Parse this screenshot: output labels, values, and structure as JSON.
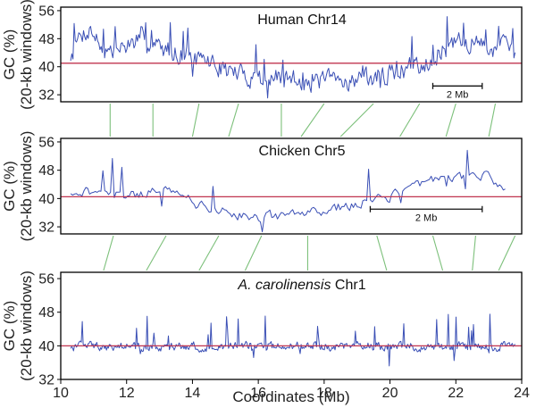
{
  "chart_data": {
    "type": "line",
    "x_axis": {
      "label": "Coordinates (Mb)",
      "lim": [
        10,
        24
      ],
      "ticks": [
        10,
        12,
        14,
        16,
        18,
        20,
        22,
        24
      ]
    },
    "panels": [
      {
        "id": "human",
        "title": "Human Chr14",
        "title_italic": "",
        "ylabel_line1": "GC (%)",
        "ylabel_line2": "(20-kb windows)",
        "ylim": [
          30,
          57
        ],
        "yticks": [
          32,
          40,
          48,
          56
        ],
        "reference_line": 41,
        "scalebar": {
          "label": "2 Mb",
          "x_start": 21.3,
          "x_end": 22.8,
          "y": 34.5
        },
        "profile": [
          [
            10.3,
            43
          ],
          [
            10.6,
            49
          ],
          [
            10.9,
            51
          ],
          [
            11.2,
            46
          ],
          [
            11.6,
            44
          ],
          [
            12.0,
            46
          ],
          [
            12.4,
            48
          ],
          [
            12.8,
            46
          ],
          [
            13.2,
            45
          ],
          [
            13.6,
            44
          ],
          [
            14.0,
            43
          ],
          [
            14.4,
            42
          ],
          [
            14.8,
            40
          ],
          [
            15.2,
            38.5
          ],
          [
            15.6,
            37.5
          ],
          [
            16.0,
            37
          ],
          [
            16.5,
            36.5
          ],
          [
            17.0,
            36.5
          ],
          [
            17.5,
            36
          ],
          [
            18.0,
            36
          ],
          [
            18.5,
            36
          ],
          [
            19.0,
            36.5
          ],
          [
            19.5,
            37
          ],
          [
            20.0,
            38
          ],
          [
            20.5,
            39.5
          ],
          [
            21.0,
            41
          ],
          [
            21.5,
            44
          ],
          [
            22.0,
            46.5
          ],
          [
            22.5,
            47
          ],
          [
            23.0,
            45
          ],
          [
            23.4,
            46
          ],
          [
            23.8,
            44
          ]
        ],
        "noise": 3.2,
        "spike_rate": 0.06,
        "spike_size": 6,
        "n_points": 380,
        "seed": 7
      },
      {
        "id": "chicken",
        "title": "Chicken Chr5",
        "title_italic": "",
        "ylabel_line1": "GC (%)",
        "ylabel_line2": "(20-kb windows)",
        "ylim": [
          30,
          57
        ],
        "yticks": [
          32,
          40,
          48,
          56
        ],
        "reference_line": 40.5,
        "scalebar": {
          "label": "2 Mb",
          "x_start": 19.4,
          "x_end": 22.8,
          "y": 37
        },
        "profile": [
          [
            10.3,
            42
          ],
          [
            11.0,
            42
          ],
          [
            11.6,
            41
          ],
          [
            12.2,
            41
          ],
          [
            12.8,
            42
          ],
          [
            13.3,
            43
          ],
          [
            13.7,
            42
          ],
          [
            14.2,
            38
          ],
          [
            14.8,
            36.5
          ],
          [
            15.4,
            35.5
          ],
          [
            16.0,
            35
          ],
          [
            16.6,
            35
          ],
          [
            17.2,
            35.5
          ],
          [
            17.8,
            36.5
          ],
          [
            18.4,
            37.5
          ],
          [
            19.0,
            38.5
          ],
          [
            19.6,
            39.5
          ],
          [
            20.2,
            41
          ],
          [
            20.8,
            44
          ],
          [
            21.4,
            46
          ],
          [
            22.0,
            46
          ],
          [
            22.6,
            47
          ],
          [
            23.0,
            46
          ],
          [
            23.5,
            43
          ]
        ],
        "noise": 1.6,
        "spike_rate": 0.05,
        "spike_size": 7,
        "n_points": 230,
        "seed": 21
      },
      {
        "id": "anole",
        "title": "Chr1",
        "title_italic": "A. carolinensis",
        "ylabel_line1": "GC (%)",
        "ylabel_line2": "(20-kb windows)",
        "ylim": [
          32,
          57.5
        ],
        "yticks": [
          32,
          40,
          48,
          56
        ],
        "reference_line": 40,
        "scalebar": null,
        "profile": [
          [
            10.3,
            39.8
          ],
          [
            14.0,
            39.8
          ],
          [
            17.0,
            40
          ],
          [
            20.0,
            39.8
          ],
          [
            23.8,
            39.9
          ]
        ],
        "noise": 1.2,
        "spike_rate": 0.07,
        "spike_size": 5,
        "n_points": 460,
        "seed": 99
      }
    ],
    "synteny_lines": [
      {
        "from_panel": "human",
        "to_panel": "chicken",
        "pairs": [
          [
            11.5,
            11.5
          ],
          [
            12.8,
            12.8
          ],
          [
            14.2,
            14.0
          ],
          [
            15.4,
            15.1
          ],
          [
            16.7,
            16.7
          ],
          [
            18.0,
            17.3
          ],
          [
            19.5,
            18.5
          ],
          [
            20.9,
            20.3
          ],
          [
            22.0,
            21.7
          ],
          [
            23.2,
            23.0
          ]
        ]
      },
      {
        "from_panel": "chicken",
        "to_panel": "anole",
        "pairs": [
          [
            11.6,
            11.3
          ],
          [
            13.2,
            12.6
          ],
          [
            14.8,
            14.2
          ],
          [
            16.1,
            15.6
          ],
          [
            17.5,
            17.5
          ],
          [
            19.6,
            19.9
          ],
          [
            21.3,
            21.6
          ],
          [
            22.6,
            22.5
          ],
          [
            23.8,
            23.3
          ]
        ]
      }
    ]
  }
}
